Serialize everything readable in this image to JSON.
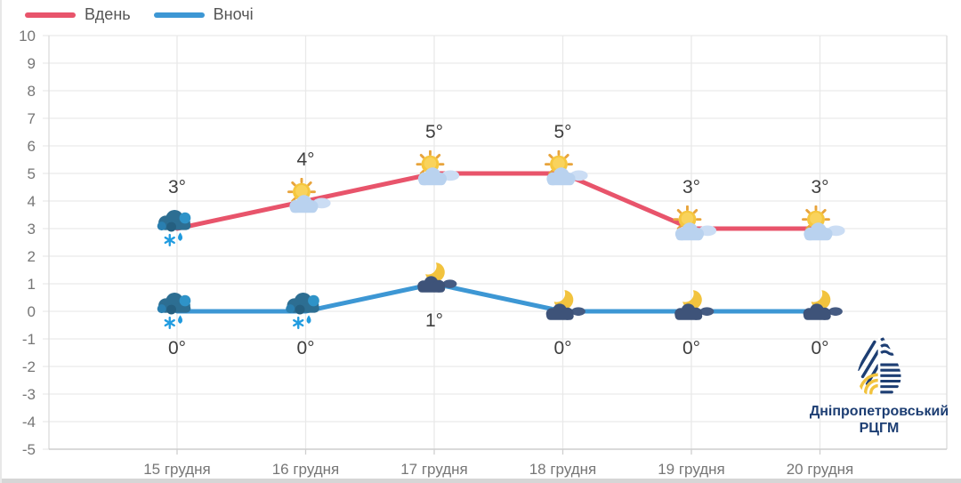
{
  "legend": {
    "day_label": "Вдень",
    "night_label": "Вночі"
  },
  "logo": {
    "line1": "Дніпропетровський",
    "line2": "РЦГМ"
  },
  "colors": {
    "day_line": "#e8546b",
    "night_line": "#3d97d4",
    "grid": "#e9e9e9",
    "plot_border": "#dcdcdc",
    "bottom_axis": "#cfcfcf",
    "axis_text": "#767676",
    "temp_text": "#3e3e3e",
    "logo_navy": "#1d3e73",
    "logo_yellow": "#f2c33e"
  },
  "chart_data": {
    "type": "line",
    "title": "",
    "xlabel": "",
    "ylabel": "",
    "categories": [
      "15 грудня",
      "16 грудня",
      "17 грудня",
      "18 грудня",
      "19 грудня",
      "20 грудня"
    ],
    "series": [
      {
        "name": "Вдень",
        "values": [
          3,
          4,
          5,
          5,
          3,
          3
        ],
        "labels": [
          "3°",
          "4°",
          "5°",
          "5°",
          "3°",
          "3°"
        ],
        "color": "#e8546b",
        "icons": [
          "snow-rain-cloud",
          "sun-cloud",
          "sun-cloud",
          "sun-cloud",
          "sun-cloud",
          "sun-cloud"
        ]
      },
      {
        "name": "Вночі",
        "values": [
          0,
          0,
          1,
          0,
          0,
          0
        ],
        "labels": [
          "0°",
          "0°",
          "1°",
          "0°",
          "0°",
          "0°"
        ],
        "color": "#3d97d4",
        "icons": [
          "snow-rain-cloud",
          "snow-rain-cloud",
          "moon-cloud",
          "moon-cloud",
          "moon-cloud",
          "moon-cloud"
        ]
      }
    ],
    "ylim": [
      -5,
      10
    ],
    "yticks": [
      10,
      9,
      8,
      7,
      6,
      5,
      4,
      3,
      2,
      1,
      0,
      -1,
      -2,
      -3,
      -4,
      -5
    ],
    "grid": true,
    "legend_position": "top-left"
  }
}
